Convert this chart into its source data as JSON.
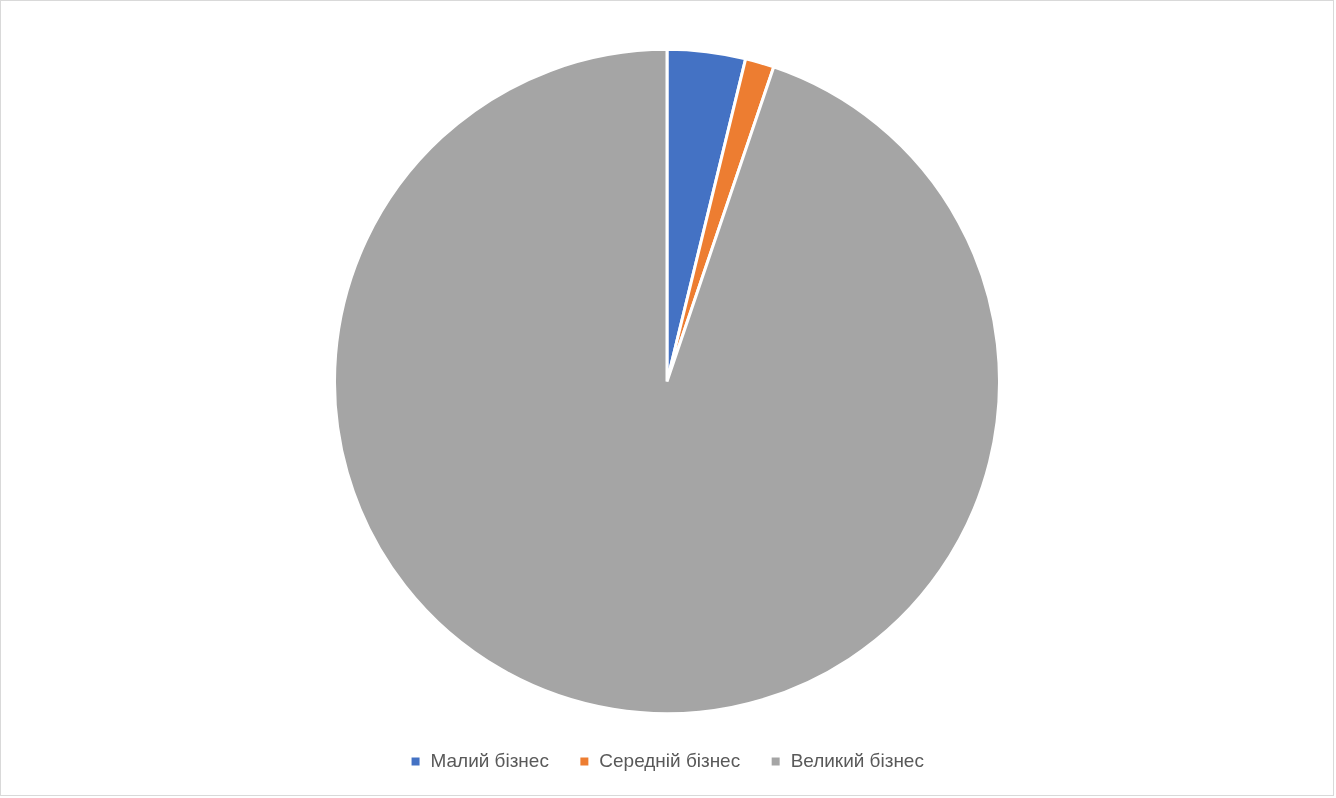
{
  "chart_data": {
    "type": "pie",
    "categories": [
      "Малий бізнес",
      "Середній бізнес",
      "Великий бізнес"
    ],
    "values": [
      3.8,
      1.4,
      94.8
    ],
    "colors": [
      "#4472c4",
      "#ed7d31",
      "#a5a5a5"
    ],
    "legend": "bottom"
  }
}
